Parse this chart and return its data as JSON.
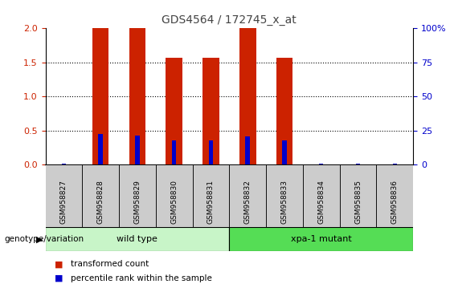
{
  "title": "GDS4564 / 172745_x_at",
  "samples": [
    "GSM958827",
    "GSM958828",
    "GSM958829",
    "GSM958830",
    "GSM958831",
    "GSM958832",
    "GSM958833",
    "GSM958834",
    "GSM958835",
    "GSM958836"
  ],
  "red_values": [
    0.0,
    2.0,
    2.0,
    1.57,
    1.57,
    2.0,
    1.57,
    0.0,
    0.0,
    0.0
  ],
  "blue_values": [
    0.02,
    0.45,
    0.43,
    0.36,
    0.36,
    0.42,
    0.36,
    0.02,
    0.02,
    0.02
  ],
  "ylim_left": [
    0,
    2
  ],
  "ylim_right": [
    0,
    100
  ],
  "yticks_left": [
    0,
    0.5,
    1.0,
    1.5,
    2.0
  ],
  "yticks_right": [
    0,
    25,
    50,
    75,
    100
  ],
  "groups": [
    {
      "label": "wild type",
      "start": 0,
      "end": 4,
      "color": "#c8f5c8"
    },
    {
      "label": "xpa-1 mutant",
      "start": 5,
      "end": 9,
      "color": "#55dd55"
    }
  ],
  "group_label": "genotype/variation",
  "legend_items": [
    {
      "color": "#cc2200",
      "label": "transformed count"
    },
    {
      "color": "#0000cc",
      "label": "percentile rank within the sample"
    }
  ],
  "red_bar_width": 0.45,
  "blue_bar_width": 0.12,
  "red_color": "#cc2200",
  "blue_color": "#0000cc",
  "left_yaxis_color": "#cc2200",
  "right_yaxis_color": "#0000cc",
  "sample_bg_color": "#cccccc",
  "dotted_lines": [
    0.5,
    1.0,
    1.5
  ],
  "title_color": "#444444"
}
